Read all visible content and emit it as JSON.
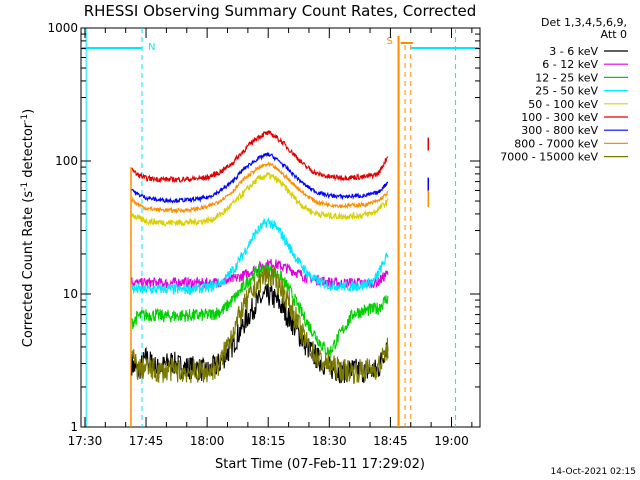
{
  "chart_data": {
    "type": "line",
    "title": "RHESSI Observing Summary Count Rates, Corrected",
    "xlabel": "Start Time (07-Feb-11 17:29:02)",
    "ylabel": "Corrected Count Rate (s",
    "ylabel_sup": "-1",
    "ylabel_rest": " detector",
    "ylabel_sup2": "-1",
    "ylabel_end": ")",
    "y_scale": "log",
    "ylim": [
      1,
      1000
    ],
    "xlim": [
      "17:29:02",
      "19:07:00"
    ],
    "y_ticks": [
      {
        "label": "1",
        "value": 1
      },
      {
        "label": "10",
        "value": 10
      },
      {
        "label": "100",
        "value": 100
      },
      {
        "label": "1000",
        "value": 1000
      }
    ],
    "x_ticks": [
      {
        "label": "17:30",
        "value": 30
      },
      {
        "label": "17:45",
        "value": 45
      },
      {
        "label": "18:00",
        "value": 60
      },
      {
        "label": "18:15",
        "value": 75
      },
      {
        "label": "18:30",
        "value": 90
      },
      {
        "label": "18:45",
        "value": 105
      },
      {
        "label": "19:00",
        "value": 120
      }
    ],
    "legend_header": [
      "Det 1,3,4,5,6,9,",
      "Att 0"
    ],
    "legend_position": "right",
    "series": [
      {
        "name": "3 - 6 keV",
        "color": "#000000",
        "x": [
          41.5,
          43,
          45,
          48,
          51,
          54,
          57,
          60,
          63,
          66,
          69,
          72,
          74,
          75,
          76,
          78,
          81,
          84,
          87,
          90,
          93,
          96,
          99,
          102,
          104.5
        ],
        "y": [
          3.0,
          2.6,
          3.3,
          2.7,
          3.1,
          2.8,
          2.8,
          2.6,
          3.0,
          4.0,
          6.0,
          8.5,
          9.5,
          9.8,
          9.5,
          8.3,
          6.0,
          4.2,
          3.3,
          2.8,
          2.6,
          2.7,
          2.6,
          2.7,
          4.5
        ]
      },
      {
        "name": "6 - 12 keV",
        "color": "#e000e0",
        "x": [
          41.5,
          43,
          46,
          50,
          54,
          58,
          62,
          66,
          69,
          72,
          74,
          76,
          78,
          81,
          84,
          87,
          90,
          93,
          96,
          99,
          102,
          104.5
        ],
        "y": [
          12.5,
          12.0,
          12.2,
          12.0,
          12.3,
          12.0,
          12.2,
          12.8,
          13.8,
          15.5,
          16.5,
          17.0,
          16.3,
          15.0,
          13.5,
          12.8,
          12.3,
          12.0,
          12.2,
          12.0,
          12.3,
          14.5
        ]
      },
      {
        "name": "12 - 25 keV",
        "color": "#00d000",
        "x": [
          41.5,
          43,
          46,
          50,
          54,
          58,
          61,
          64,
          67,
          70,
          72,
          74,
          76,
          78,
          80,
          82,
          84,
          86,
          88,
          90,
          93,
          96,
          99,
          102,
          104.5
        ],
        "y": [
          6.0,
          6.8,
          7.0,
          6.8,
          6.9,
          6.9,
          7.0,
          7.6,
          9.5,
          12.5,
          14.5,
          15.5,
          15.0,
          13.5,
          11.0,
          8.5,
          6.5,
          5.2,
          4.2,
          3.6,
          5.2,
          7.2,
          7.5,
          7.8,
          9.5
        ]
      },
      {
        "name": "25 - 50 keV",
        "color": "#00e8ff",
        "x": [
          41.5,
          43,
          46,
          50,
          54,
          58,
          61,
          64,
          67,
          70,
          72,
          74,
          75,
          76,
          78,
          80,
          83,
          86,
          89,
          92,
          95,
          98,
          101,
          104.5
        ],
        "y": [
          11.0,
          10.8,
          10.8,
          10.9,
          10.8,
          11.0,
          11.3,
          12.5,
          16.0,
          23.0,
          29.0,
          33.5,
          35.0,
          33.5,
          29.0,
          23.0,
          16.5,
          13.0,
          11.8,
          11.5,
          11.4,
          11.6,
          12.5,
          20.0
        ]
      },
      {
        "name": "50 - 100 keV",
        "color": "#d8d000",
        "x": [
          41.5,
          43,
          46,
          50,
          54,
          58,
          61,
          64,
          67,
          70,
          72,
          74,
          75,
          76,
          78,
          80,
          83,
          86,
          89,
          92,
          95,
          98,
          101,
          104.5
        ],
        "y": [
          40.0,
          37.0,
          35.0,
          34.5,
          34.5,
          35.0,
          36.0,
          41.0,
          50.0,
          62.0,
          71.0,
          77.0,
          78.0,
          76.0,
          69.0,
          59.0,
          47.0,
          41.0,
          39.0,
          38.5,
          38.5,
          39.0,
          41.0,
          50.0
        ]
      },
      {
        "name": "100 - 300 keV",
        "color": "#e00000",
        "x": [
          41.5,
          42.5,
          45,
          48,
          52,
          56,
          60,
          63,
          66,
          69,
          72,
          74,
          75,
          76,
          78,
          81,
          84,
          87,
          90,
          93,
          96,
          99,
          102,
          104.5
        ],
        "y": [
          90.0,
          80.0,
          74.0,
          73.0,
          72.5,
          73.0,
          75.0,
          82.0,
          95.0,
          120.0,
          148.0,
          160.0,
          162.0,
          158.0,
          143.0,
          115.0,
          92.0,
          80.0,
          76.0,
          75.0,
          75.5,
          76.0,
          80.0,
          110.0
        ]
      },
      {
        "name": "300 - 800 keV",
        "color": "#0000ff",
        "x": [
          41.5,
          42.5,
          45,
          48,
          52,
          56,
          60,
          63,
          66,
          69,
          72,
          74,
          75,
          76,
          78,
          81,
          84,
          87,
          90,
          93,
          96,
          99,
          102,
          104.5
        ],
        "y": [
          62.0,
          57.0,
          53.0,
          51.0,
          50.5,
          51.0,
          53.0,
          59.0,
          69.0,
          87.0,
          102.0,
          110.0,
          112.0,
          109.0,
          98.0,
          80.0,
          66.0,
          58.0,
          55.0,
          54.0,
          54.5,
          55.0,
          58.0,
          70.0
        ]
      },
      {
        "name": "800 - 7000 keV",
        "color": "#ff8c00",
        "x": [
          41.5,
          42.5,
          45,
          48,
          52,
          56,
          60,
          63,
          66,
          69,
          72,
          74,
          75,
          76,
          78,
          81,
          84,
          87,
          90,
          93,
          96,
          99,
          102,
          104.5
        ],
        "y": [
          52.0,
          48.0,
          44.0,
          43.0,
          42.5,
          43.0,
          45.0,
          50.0,
          58.0,
          73.0,
          86.0,
          93.0,
          94.0,
          92.0,
          83.0,
          68.0,
          56.0,
          49.0,
          47.0,
          46.0,
          46.5,
          47.0,
          50.0,
          58.0
        ]
      },
      {
        "name": "7000 - 15000 keV",
        "color": "#7a7a00",
        "x": [
          41.5,
          43,
          45,
          48,
          51,
          54,
          57,
          60,
          63,
          66,
          69,
          72,
          74,
          75,
          76,
          78,
          81,
          84,
          87,
          90,
          93,
          96,
          99,
          102,
          104.5
        ],
        "y": [
          3.5,
          2.7,
          2.8,
          2.6,
          2.7,
          2.6,
          2.6,
          2.6,
          2.9,
          5.0,
          8.0,
          11.5,
          13.5,
          14.0,
          13.5,
          11.5,
          7.5,
          4.5,
          3.3,
          2.9,
          2.7,
          2.6,
          2.7,
          2.8,
          4.0
        ]
      }
    ],
    "markers": [
      {
        "label": "N",
        "color": "#00e8ff"
      },
      {
        "label": "S",
        "color": "#ff8c00"
      }
    ],
    "footer": "14-Oct-2021 02:15"
  }
}
